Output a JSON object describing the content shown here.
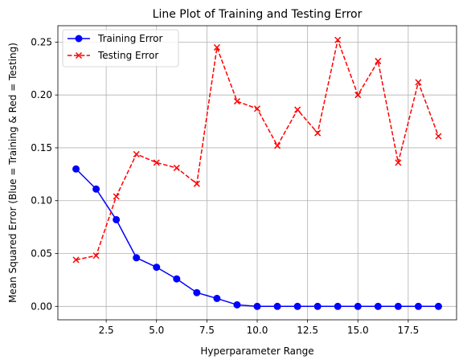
{
  "chart_data": {
    "type": "line",
    "title": "Line Plot of Training and Testing Error",
    "xlabel": "Hyperparameter Range",
    "ylabel": "Mean Squared Error (Blue = Training & Red = Testing)",
    "x": [
      1,
      2,
      3,
      4,
      5,
      6,
      7,
      8,
      9,
      10,
      11,
      12,
      13,
      14,
      15,
      16,
      17,
      18,
      19
    ],
    "xlim": [
      0.1,
      19.9
    ],
    "ylim": [
      -0.0127,
      0.2655
    ],
    "xticks": [
      2.5,
      5.0,
      7.5,
      10.0,
      12.5,
      15.0,
      17.5
    ],
    "xtick_labels": [
      "2.5",
      "5.0",
      "7.5",
      "10.0",
      "12.5",
      "15.0",
      "17.5"
    ],
    "yticks": [
      0.0,
      0.05,
      0.1,
      0.15,
      0.2,
      0.25
    ],
    "ytick_labels": [
      "0.00",
      "0.05",
      "0.10",
      "0.15",
      "0.20",
      "0.25"
    ],
    "grid": true,
    "legend_position": "top-left",
    "series": [
      {
        "name": "Training Error",
        "color": "#0000ff",
        "marker": "circle",
        "linestyle": "solid",
        "values": [
          0.13,
          0.111,
          0.082,
          0.046,
          0.037,
          0.026,
          0.013,
          0.0075,
          0.0015,
          0.0,
          0.0,
          0.0,
          0.0,
          0.0,
          0.0,
          0.0,
          0.0,
          0.0,
          0.0
        ]
      },
      {
        "name": "Testing Error",
        "color": "#ff0000",
        "marker": "x",
        "linestyle": "dashed",
        "values": [
          0.044,
          0.048,
          0.104,
          0.144,
          0.136,
          0.131,
          0.116,
          0.245,
          0.194,
          0.187,
          0.152,
          0.186,
          0.164,
          0.252,
          0.2,
          0.232,
          0.136,
          0.212,
          0.161
        ]
      }
    ]
  }
}
